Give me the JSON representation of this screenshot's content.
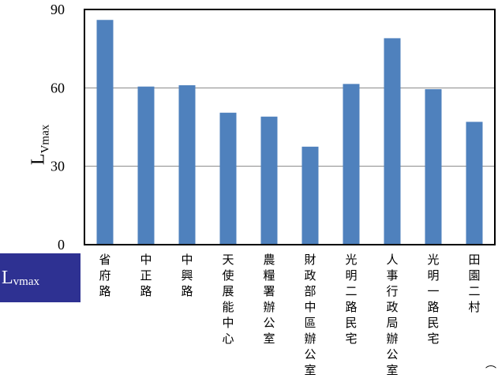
{
  "chart_data": {
    "type": "bar",
    "categories": [
      "省府路",
      "中正路",
      "中興路",
      "天使展能中心",
      "農糧署辦公室",
      "財政部中區辦公室",
      "光明二路民宅",
      "人事行政局辦公室",
      "光明一路民宅",
      "田園二村"
    ],
    "values": [
      86,
      60.5,
      61,
      50.5,
      49,
      37.5,
      61.5,
      79,
      59.5,
      47
    ],
    "yticks": [
      0,
      30,
      60,
      90
    ],
    "ylim": [
      0,
      90
    ],
    "ylabel_main": "L",
    "ylabel_sub": "Vmax",
    "title": "",
    "xlabel": "",
    "bar_color": "#4f81bd",
    "grid": true
  },
  "badge": {
    "main": "L",
    "sub": "vmax",
    "color": "#2e3192"
  },
  "corner_mark": "⌒"
}
